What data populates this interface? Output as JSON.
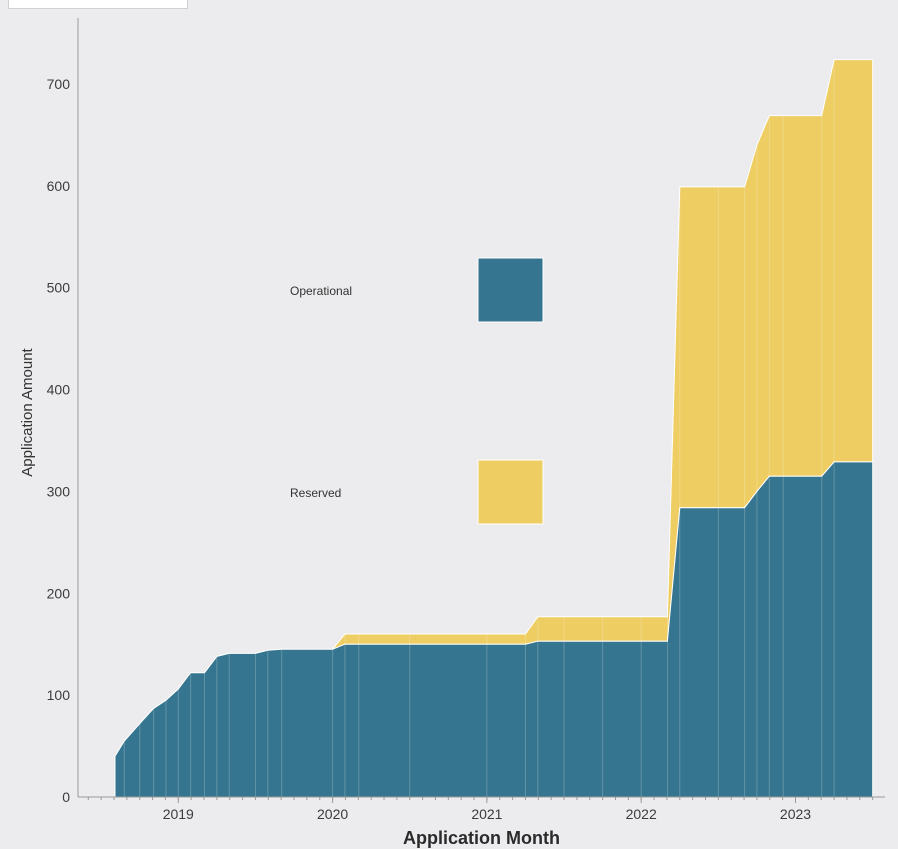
{
  "chart_data": {
    "type": "area",
    "stacked": true,
    "step": true,
    "title": "",
    "xlabel": "Application Month",
    "ylabel": "Application Amount",
    "x_ticks": [
      "2019",
      "2020",
      "2021",
      "2022",
      "2023"
    ],
    "y_ticks": [
      "0",
      "100",
      "200",
      "300",
      "400",
      "500",
      "600",
      "700"
    ],
    "xlim": [
      2018.35,
      2023.58
    ],
    "ylim": [
      0,
      755
    ],
    "grid": false,
    "legend_position": "center",
    "x": [
      2018.59,
      2018.65,
      2018.75,
      2018.84,
      2018.92,
      2019.0,
      2019.08,
      2019.17,
      2019.25,
      2019.33,
      2019.5,
      2019.58,
      2019.67,
      2020.0,
      2020.08,
      2020.17,
      2020.5,
      2021.0,
      2021.25,
      2021.33,
      2021.5,
      2021.75,
      2022.0,
      2022.17,
      2022.25,
      2022.5,
      2022.67,
      2022.75,
      2022.83,
      2022.92,
      2023.17,
      2023.25,
      2023.5
    ],
    "series": [
      {
        "name": "Operational",
        "color": "#36758f",
        "values": [
          40,
          55,
          72,
          87,
          95,
          106,
          122,
          122,
          138,
          141,
          141,
          144,
          145,
          145,
          150,
          150,
          150,
          150,
          150,
          153,
          153,
          153,
          153,
          153,
          284,
          284,
          284,
          300,
          315,
          315,
          315,
          329,
          329
        ]
      },
      {
        "name": "Reserved",
        "color": "#eecd62",
        "values": [
          0,
          0,
          0,
          0,
          0,
          0,
          0,
          0,
          0,
          0,
          0,
          0,
          0,
          0,
          10,
          10,
          10,
          10,
          10,
          24,
          24,
          24,
          24,
          24,
          315,
          315,
          315,
          340,
          354,
          354,
          354,
          395,
          395
        ]
      }
    ],
    "legend": [
      {
        "label": "Operational",
        "color": "#36758f"
      },
      {
        "label": "Reserved",
        "color": "#eecd62"
      }
    ]
  }
}
